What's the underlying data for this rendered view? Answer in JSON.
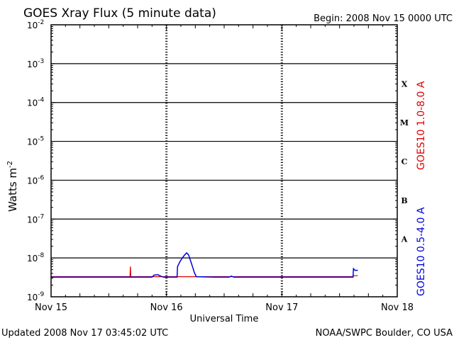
{
  "chart_data": {
    "type": "line",
    "title": "GOES Xray Flux (5 minute data)",
    "begin_label": "Begin:  2008 Nov 15 0000 UTC",
    "xlabel": "Universal Time",
    "ylabel_base": "Watts m",
    "ylabel_exp": "-2",
    "x_tick_labels": [
      "Nov 15",
      "Nov 16",
      "Nov 17",
      "Nov 18"
    ],
    "xlim_hours": [
      0,
      72
    ],
    "yscale": "log",
    "y_tick_exponents": [
      -2,
      -3,
      -4,
      -5,
      -6,
      -7,
      -8,
      -9
    ],
    "y_tick_base": "10",
    "flare_classes": [
      {
        "label": "X",
        "exp": -3.5
      },
      {
        "label": "M",
        "exp": -4.5
      },
      {
        "label": "C",
        "exp": -5.5
      },
      {
        "label": "B",
        "exp": -6.5
      },
      {
        "label": "A",
        "exp": -7.5
      }
    ],
    "grid": true,
    "series": [
      {
        "name": "GOES10 1.0-8.0 A",
        "color": "#e00000",
        "points": [
          [
            0,
            3.3e-09
          ],
          [
            16.4,
            3.3e-09
          ],
          [
            16.5,
            6e-09
          ],
          [
            16.6,
            3.3e-09
          ],
          [
            30,
            3.3e-09
          ],
          [
            40,
            3.3e-09
          ],
          [
            50,
            3.3e-09
          ],
          [
            60,
            3.3e-09
          ],
          [
            62.8,
            3.3e-09
          ],
          [
            63.0,
            3.5e-09
          ],
          [
            63.8,
            3.5e-09
          ]
        ]
      },
      {
        "name": "GOES10 0.5-4.0 A",
        "color": "#0000e0",
        "points": [
          [
            0,
            3.2e-09
          ],
          [
            21.0,
            3.2e-09
          ],
          [
            21.4,
            3.6e-09
          ],
          [
            22.2,
            3.7e-09
          ],
          [
            22.8,
            3.4e-09
          ],
          [
            23.4,
            3.2e-09
          ],
          [
            26.2,
            3.2e-09
          ],
          [
            26.3,
            6e-09
          ],
          [
            26.8,
            8e-09
          ],
          [
            27.3,
            1e-08
          ],
          [
            27.8,
            1.2e-08
          ],
          [
            28.2,
            1.35e-08
          ],
          [
            28.6,
            1.2e-08
          ],
          [
            29.0,
            8.5e-09
          ],
          [
            29.4,
            6e-09
          ],
          [
            29.8,
            4.2e-09
          ],
          [
            30.2,
            3.3e-09
          ],
          [
            34.0,
            3.2e-09
          ],
          [
            37.0,
            3.2e-09
          ],
          [
            37.5,
            3.4e-09
          ],
          [
            38.0,
            3.2e-09
          ],
          [
            50.0,
            3.2e-09
          ],
          [
            60.0,
            3.2e-09
          ],
          [
            62.8,
            3.2e-09
          ],
          [
            62.9,
            5.3e-09
          ],
          [
            63.2,
            4.8e-09
          ],
          [
            63.8,
            4.8e-09
          ]
        ]
      }
    ]
  },
  "footer": {
    "updated": "Updated 2008 Nov 17 03:45:02 UTC",
    "credit": "NOAA/SWPC Boulder, CO USA"
  }
}
